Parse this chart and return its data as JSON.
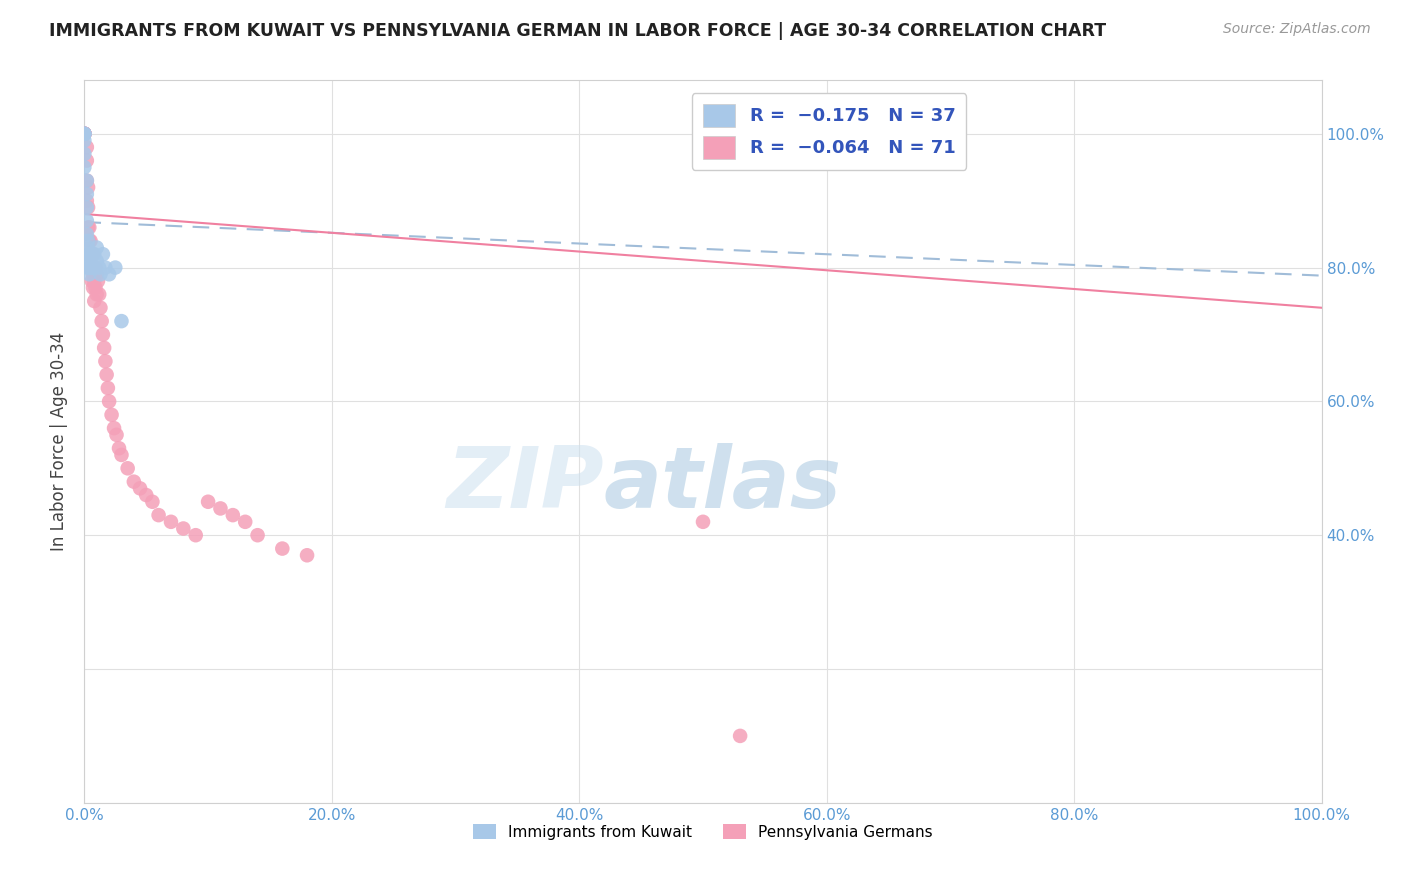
{
  "title": "IMMIGRANTS FROM KUWAIT VS PENNSYLVANIA GERMAN IN LABOR FORCE | AGE 30-34 CORRELATION CHART",
  "source": "Source: ZipAtlas.com",
  "ylabel": "In Labor Force | Age 30-34",
  "xlim": [
    0.0,
    1.0
  ],
  "ylim": [
    0.0,
    1.08
  ],
  "color_kuwait": "#a8c8e8",
  "color_penn": "#f4a0b8",
  "color_kuwait_line": "#a0bcd8",
  "color_penn_line": "#f080a0",
  "watermark_zip": "ZIP",
  "watermark_atlas": "atlas",
  "kuwait_x": [
    0.0,
    0.0,
    0.0,
    0.0,
    0.0,
    0.0,
    0.002,
    0.002,
    0.002,
    0.002,
    0.002,
    0.003,
    0.003,
    0.003,
    0.003,
    0.003,
    0.003,
    0.004,
    0.004,
    0.005,
    0.005,
    0.005,
    0.006,
    0.006,
    0.007,
    0.007,
    0.008,
    0.008,
    0.01,
    0.01,
    0.012,
    0.013,
    0.015,
    0.017,
    0.02,
    0.025,
    0.03
  ],
  "kuwait_y": [
    1.0,
    1.0,
    1.0,
    0.99,
    0.97,
    0.95,
    0.93,
    0.91,
    0.89,
    0.87,
    0.85,
    0.84,
    0.83,
    0.82,
    0.81,
    0.8,
    0.8,
    0.8,
    0.79,
    0.82,
    0.81,
    0.8,
    0.82,
    0.8,
    0.82,
    0.8,
    0.82,
    0.8,
    0.83,
    0.81,
    0.8,
    0.79,
    0.82,
    0.8,
    0.79,
    0.8,
    0.72
  ],
  "penn_x": [
    0.0,
    0.0,
    0.0,
    0.0,
    0.0,
    0.0,
    0.0,
    0.0,
    0.0,
    0.002,
    0.002,
    0.002,
    0.002,
    0.003,
    0.003,
    0.003,
    0.003,
    0.003,
    0.004,
    0.004,
    0.004,
    0.004,
    0.005,
    0.005,
    0.005,
    0.006,
    0.006,
    0.006,
    0.007,
    0.007,
    0.007,
    0.008,
    0.008,
    0.008,
    0.009,
    0.009,
    0.01,
    0.01,
    0.011,
    0.012,
    0.013,
    0.014,
    0.015,
    0.016,
    0.017,
    0.018,
    0.019,
    0.02,
    0.022,
    0.024,
    0.026,
    0.028,
    0.03,
    0.035,
    0.04,
    0.045,
    0.05,
    0.055,
    0.06,
    0.07,
    0.08,
    0.09,
    0.1,
    0.11,
    0.12,
    0.13,
    0.14,
    0.16,
    0.18,
    0.5,
    0.53
  ],
  "penn_y": [
    1.0,
    1.0,
    1.0,
    1.0,
    1.0,
    1.0,
    1.0,
    1.0,
    1.0,
    0.98,
    0.96,
    0.93,
    0.9,
    0.92,
    0.89,
    0.86,
    0.84,
    0.82,
    0.86,
    0.84,
    0.82,
    0.8,
    0.84,
    0.82,
    0.8,
    0.82,
    0.8,
    0.78,
    0.82,
    0.79,
    0.77,
    0.8,
    0.78,
    0.75,
    0.8,
    0.77,
    0.79,
    0.76,
    0.78,
    0.76,
    0.74,
    0.72,
    0.7,
    0.68,
    0.66,
    0.64,
    0.62,
    0.6,
    0.58,
    0.56,
    0.55,
    0.53,
    0.52,
    0.5,
    0.48,
    0.47,
    0.46,
    0.45,
    0.43,
    0.42,
    0.41,
    0.4,
    0.45,
    0.44,
    0.43,
    0.42,
    0.4,
    0.38,
    0.37,
    0.42,
    0.1
  ],
  "trend_kuwait_x0": 0.0,
  "trend_kuwait_x1": 1.0,
  "trend_kuwait_y0": 0.868,
  "trend_kuwait_y1": 0.788,
  "trend_penn_x0": 0.0,
  "trend_penn_x1": 1.0,
  "trend_penn_y0": 0.88,
  "trend_penn_y1": 0.74
}
